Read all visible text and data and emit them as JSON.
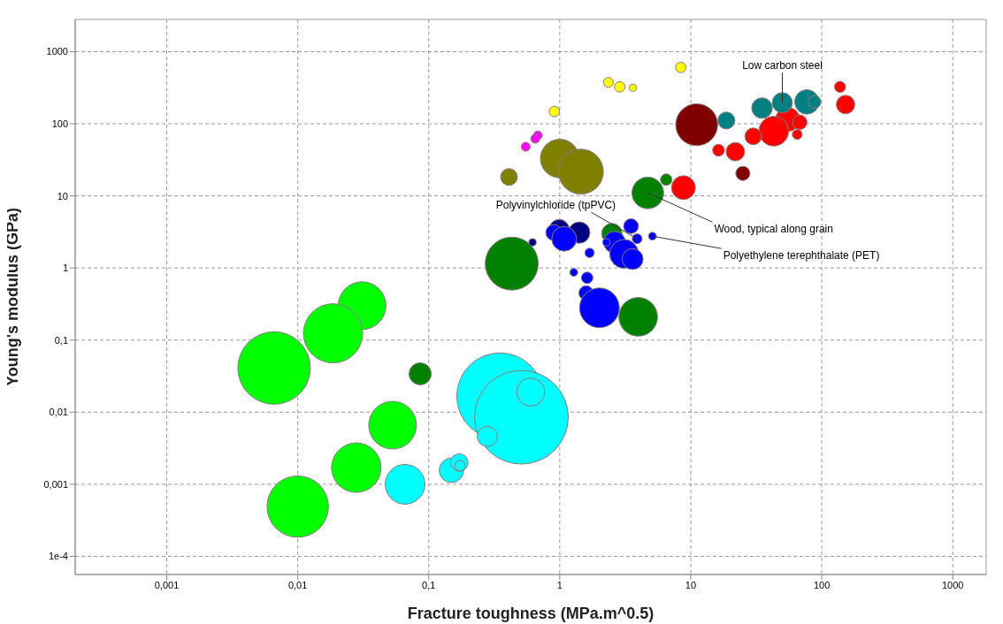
{
  "chart_data": {
    "type": "bubble",
    "xlabel": "Fracture toughness (MPa.m^0.5)",
    "ylabel": "Young's modulus (GPa)",
    "log": "xy",
    "grid": true,
    "xlim": [
      0.0002,
      1800
    ],
    "ylim": [
      5.6e-05,
      2800
    ],
    "xticks": [
      {
        "value": 0.001,
        "label": "0,001"
      },
      {
        "value": 0.01,
        "label": "0,01"
      },
      {
        "value": 0.1,
        "label": "0,1"
      },
      1,
      10,
      100,
      1000
    ],
    "yticks": [
      {
        "value": 0.0001,
        "label": "1e-4"
      },
      {
        "value": 0.001,
        "label": "0,001"
      },
      {
        "value": 0.01,
        "label": "0,01"
      },
      {
        "value": 0.1,
        "label": "0,1"
      },
      1,
      10,
      100,
      1000
    ],
    "series": [
      {
        "color": "#00ff00",
        "x": [
          0.031,
          0.0186,
          0.0066,
          0.053,
          0.028,
          0.01
        ],
        "values": [
          0.3,
          0.124,
          0.041,
          0.0066,
          0.0017,
          0.00049
        ],
        "sizes": [
          0.26,
          0.4,
          0.6,
          0.26,
          0.28,
          0.43
        ]
      },
      {
        "color": "#00ffff",
        "x": [
          0.35,
          0.51,
          0.6,
          0.28,
          0.149,
          0.171,
          0.173,
          0.066
        ],
        "values": [
          0.0167,
          0.0085,
          0.019,
          0.0046,
          0.00156,
          0.002,
          0.0018,
          0.001
        ],
        "sizes": [
          0.85,
          1,
          0.09,
          0.046,
          0.068,
          0.035,
          0.0125,
          0.18
        ]
      },
      {
        "color": "#008000",
        "x": [
          0.086,
          0.43,
          3.97,
          2.5,
          4.7,
          6.5
        ],
        "values": [
          0.034,
          1.15,
          0.21,
          3.0,
          11.0,
          16.8
        ],
        "sizes": [
          0.056,
          0.32,
          0.17,
          0.047,
          0.114,
          0.015
        ]
      },
      {
        "color": "#808000",
        "x": [
          1.0,
          1.45,
          0.41
        ],
        "values": [
          33,
          21.7,
          18.3
        ],
        "sizes": [
          0.17,
          0.23,
          0.032
        ]
      },
      {
        "color": "#ff00ff",
        "x": [
          0.68,
          0.65,
          0.55
        ],
        "values": [
          69,
          62,
          48
        ],
        "sizes": [
          0.009,
          0.009,
          0.009
        ]
      },
      {
        "color": "#ffff00",
        "x": [
          0.91,
          2.35,
          2.87,
          3.62,
          8.4
        ],
        "values": [
          148,
          375,
          325,
          316,
          605
        ],
        "sizes": [
          0.0125,
          0.011,
          0.0125,
          0.006,
          0.0125
        ]
      },
      {
        "color": "#000080",
        "x": [
          0.99,
          1.41,
          0.62
        ],
        "values": [
          3.4,
          3.1,
          2.27
        ],
        "sizes": [
          0.047,
          0.052,
          0.006
        ]
      },
      {
        "color": "#0000ff",
        "x": [
          0.9,
          1.08,
          3.5,
          2.62,
          3.1,
          1.69,
          3.6,
          3.9,
          5.1,
          2.27,
          1.28,
          1.62,
          1.59,
          2.01
        ],
        "values": [
          3.1,
          2.54,
          3.8,
          2.27,
          1.57,
          1.62,
          1.33,
          2.54,
          2.76,
          2.27,
          0.87,
          0.73,
          0.45,
          0.28
        ],
        "sizes": [
          0.029,
          0.07,
          0.025,
          0.054,
          0.095,
          0.01,
          0.05,
          0.011,
          0.007,
          0.006,
          0.007,
          0.015,
          0.024,
          0.18
        ]
      },
      {
        "color": "#ff0000",
        "x": [
          138,
          152,
          55,
          68,
          43,
          30,
          65,
          21.9,
          16.3,
          8.8
        ],
        "values": [
          325,
          185,
          115,
          105,
          79,
          67,
          71,
          41,
          43,
          13.0
        ],
        "sizes": [
          0.014,
          0.039,
          0.066,
          0.024,
          0.1,
          0.032,
          0.011,
          0.039,
          0.016,
          0.065
        ]
      },
      {
        "color": "#800000",
        "x": [
          11.1,
          25
        ],
        "values": [
          97,
          20.5
        ],
        "sizes": [
          0.2,
          0.023
        ]
      },
      {
        "color": "#008080",
        "x": [
          18.7,
          35,
          50,
          77,
          88
        ],
        "values": [
          111,
          165,
          196,
          201,
          201
        ],
        "sizes": [
          0.033,
          0.048,
          0.046,
          0.068,
          0.019
        ]
      }
    ],
    "annotations": [
      {
        "text": "Low carbon steel",
        "x": 50,
        "y": 196
      },
      {
        "text": "Polyvinylchloride (tpPVC)",
        "x": 3.9,
        "y": 2.54
      },
      {
        "text": "Wood, typical along grain",
        "x": 4.7,
        "y": 11.0
      },
      {
        "text": "Polyethylene terephthalate (PET)",
        "x": 5.1,
        "y": 2.76
      }
    ]
  }
}
